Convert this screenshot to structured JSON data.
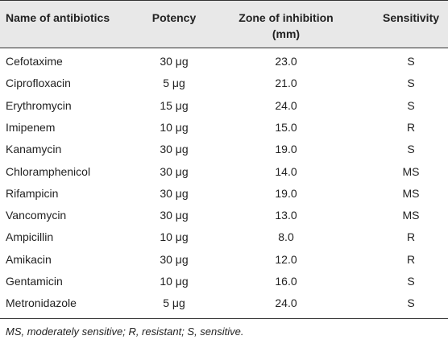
{
  "table": {
    "headers": {
      "name": "Name of antibiotics",
      "potency": "Potency",
      "zone_line1": "Zone of inhibition",
      "zone_line2": "(mm)",
      "sensitivity": "Sensitivity"
    },
    "rows": [
      {
        "name": "Cefotaxime",
        "potency": "30 μg",
        "zone": "23.0",
        "sensitivity": "S"
      },
      {
        "name": "Ciprofloxacin",
        "potency": "5 μg",
        "zone": "21.0",
        "sensitivity": "S"
      },
      {
        "name": "Erythromycin",
        "potency": "15 μg",
        "zone": "24.0",
        "sensitivity": "S"
      },
      {
        "name": "Imipenem",
        "potency": "10 μg",
        "zone": "15.0",
        "sensitivity": "R"
      },
      {
        "name": "Kanamycin",
        "potency": "30 μg",
        "zone": "19.0",
        "sensitivity": "S"
      },
      {
        "name": "Chloramphenicol",
        "potency": "30 μg",
        "zone": "14.0",
        "sensitivity": "MS"
      },
      {
        "name": "Rifampicin",
        "potency": "30 μg",
        "zone": "19.0",
        "sensitivity": "MS"
      },
      {
        "name": "Vancomycin",
        "potency": "30 μg",
        "zone": "13.0",
        "sensitivity": "MS"
      },
      {
        "name": "Ampicillin",
        "potency": "10 μg",
        "zone": "8.0",
        "sensitivity": "R"
      },
      {
        "name": "Amikacin",
        "potency": "30 μg",
        "zone": "12.0",
        "sensitivity": "R"
      },
      {
        "name": "Gentamicin",
        "potency": "10 μg",
        "zone": "16.0",
        "sensitivity": "S"
      },
      {
        "name": "Metronidazole",
        "potency": "5 μg",
        "zone": "24.0",
        "sensitivity": "S"
      }
    ],
    "footnote": "MS, moderately sensitive; R, resistant; S, sensitive."
  },
  "colors": {
    "header_background": "#e8e8e8",
    "rule": "#333333",
    "text": "#222222"
  }
}
